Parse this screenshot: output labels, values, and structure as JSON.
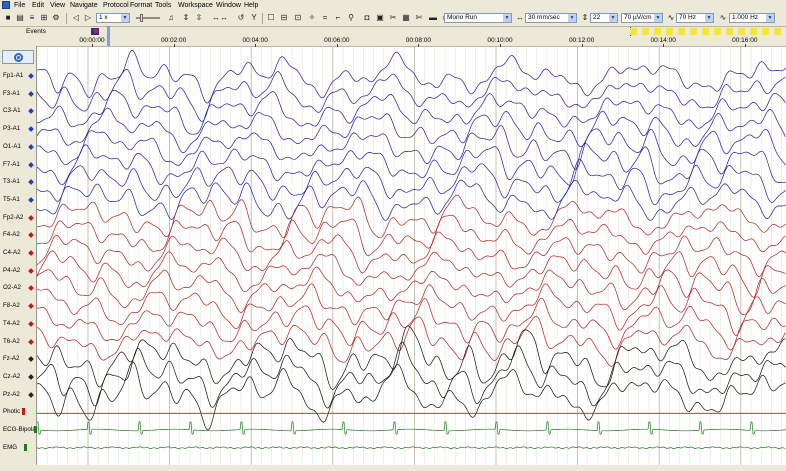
{
  "menu": {
    "items": [
      "File",
      "Edit",
      "View",
      "Navigate",
      "Protocol",
      "Format",
      "Tools",
      "Workspace",
      "Window",
      "Help"
    ]
  },
  "toolbar": {
    "playback_speed": "1 x",
    "run_mode": "Mono Run",
    "timebase": "30 mm/sec",
    "channels": "22",
    "sensitivity": "70 µV/cm",
    "high_filter": "70 Hz",
    "low_filter": "1.000 Hz"
  },
  "events": {
    "label": "Events"
  },
  "timeline": {
    "ticks": [
      "00:00:00",
      "00:02:00",
      "00:04:00",
      "00:06:00",
      "00:08:00",
      "00:10:00",
      "00:12:00",
      "00:14:00",
      "00:16:00"
    ]
  },
  "channels": [
    {
      "name": "Fp1-A1",
      "group": "left"
    },
    {
      "name": "F3-A1",
      "group": "left"
    },
    {
      "name": "C3-A1",
      "group": "left"
    },
    {
      "name": "P3-A1",
      "group": "left"
    },
    {
      "name": "O1-A1",
      "group": "left"
    },
    {
      "name": "F7-A1",
      "group": "left"
    },
    {
      "name": "T3-A1",
      "group": "left"
    },
    {
      "name": "T5-A1",
      "group": "left"
    },
    {
      "name": "Fp2-A2",
      "group": "right"
    },
    {
      "name": "F4-A2",
      "group": "right"
    },
    {
      "name": "C4-A2",
      "group": "right"
    },
    {
      "name": "P4-A2",
      "group": "right"
    },
    {
      "name": "O2-A2",
      "group": "right"
    },
    {
      "name": "F8-A2",
      "group": "right"
    },
    {
      "name": "T4-A2",
      "group": "right"
    },
    {
      "name": "T6-A2",
      "group": "right"
    },
    {
      "name": "Fz-A2",
      "group": "midline"
    },
    {
      "name": "Cz-A2",
      "group": "midline"
    },
    {
      "name": "Pz-A2",
      "group": "midline"
    },
    {
      "name": "Photic",
      "group": "photic"
    },
    {
      "name": "ECG-Bipolar",
      "group": "ecg"
    },
    {
      "name": "EMG",
      "group": "emg"
    }
  ],
  "colors": {
    "left": "#1c1ca8",
    "right": "#b02020",
    "midline": "#111111",
    "photic": "#c81414",
    "ecg": "#1f7a1f",
    "emg": "#1f7a1f",
    "dot_left": "#1e3fc0",
    "dot_right": "#c81414",
    "dot_midline": "#222222",
    "grid": "#d9d6c0",
    "grid_major": "#b8b5a0"
  },
  "icons": [
    "save-icon",
    "print-icon",
    "list-icon",
    "zoom-icon",
    "settings-icon",
    "prev-icon",
    "next-icon",
    "note-icon",
    "sensitivity-icon",
    "range-icon",
    "undo-icon",
    "filter-icon",
    "edit-icon",
    "montage-icon",
    "page-icon",
    "marker-icon",
    "move-icon",
    "spike-icon",
    "line-icon",
    "search-icon",
    "camera-icon",
    "video-icon",
    "tools-icon",
    "calc-icon",
    "cut-icon",
    "display-icon",
    "monitor-icon"
  ]
}
